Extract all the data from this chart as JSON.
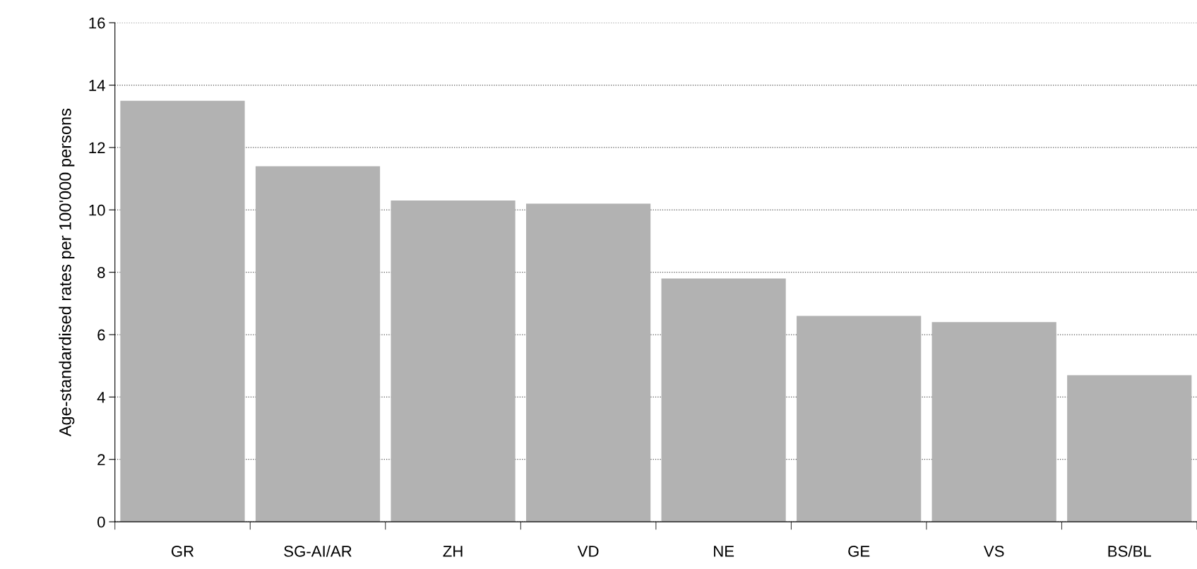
{
  "chart_data": {
    "type": "bar",
    "ylabel": "Age-standardised rates per 100'000 persons",
    "categories": [
      "GR",
      "SG-AI/AR",
      "ZH",
      "VD",
      "NE",
      "GE",
      "VS",
      "BS/BL"
    ],
    "values": [
      13.5,
      11.4,
      10.3,
      10.2,
      7.8,
      6.6,
      6.4,
      4.7
    ],
    "color": "#b2b2b2",
    "ylim": [
      0,
      16
    ],
    "yticks": [
      0,
      2,
      4,
      6,
      8,
      10,
      12,
      14,
      16
    ],
    "grid": "y"
  }
}
